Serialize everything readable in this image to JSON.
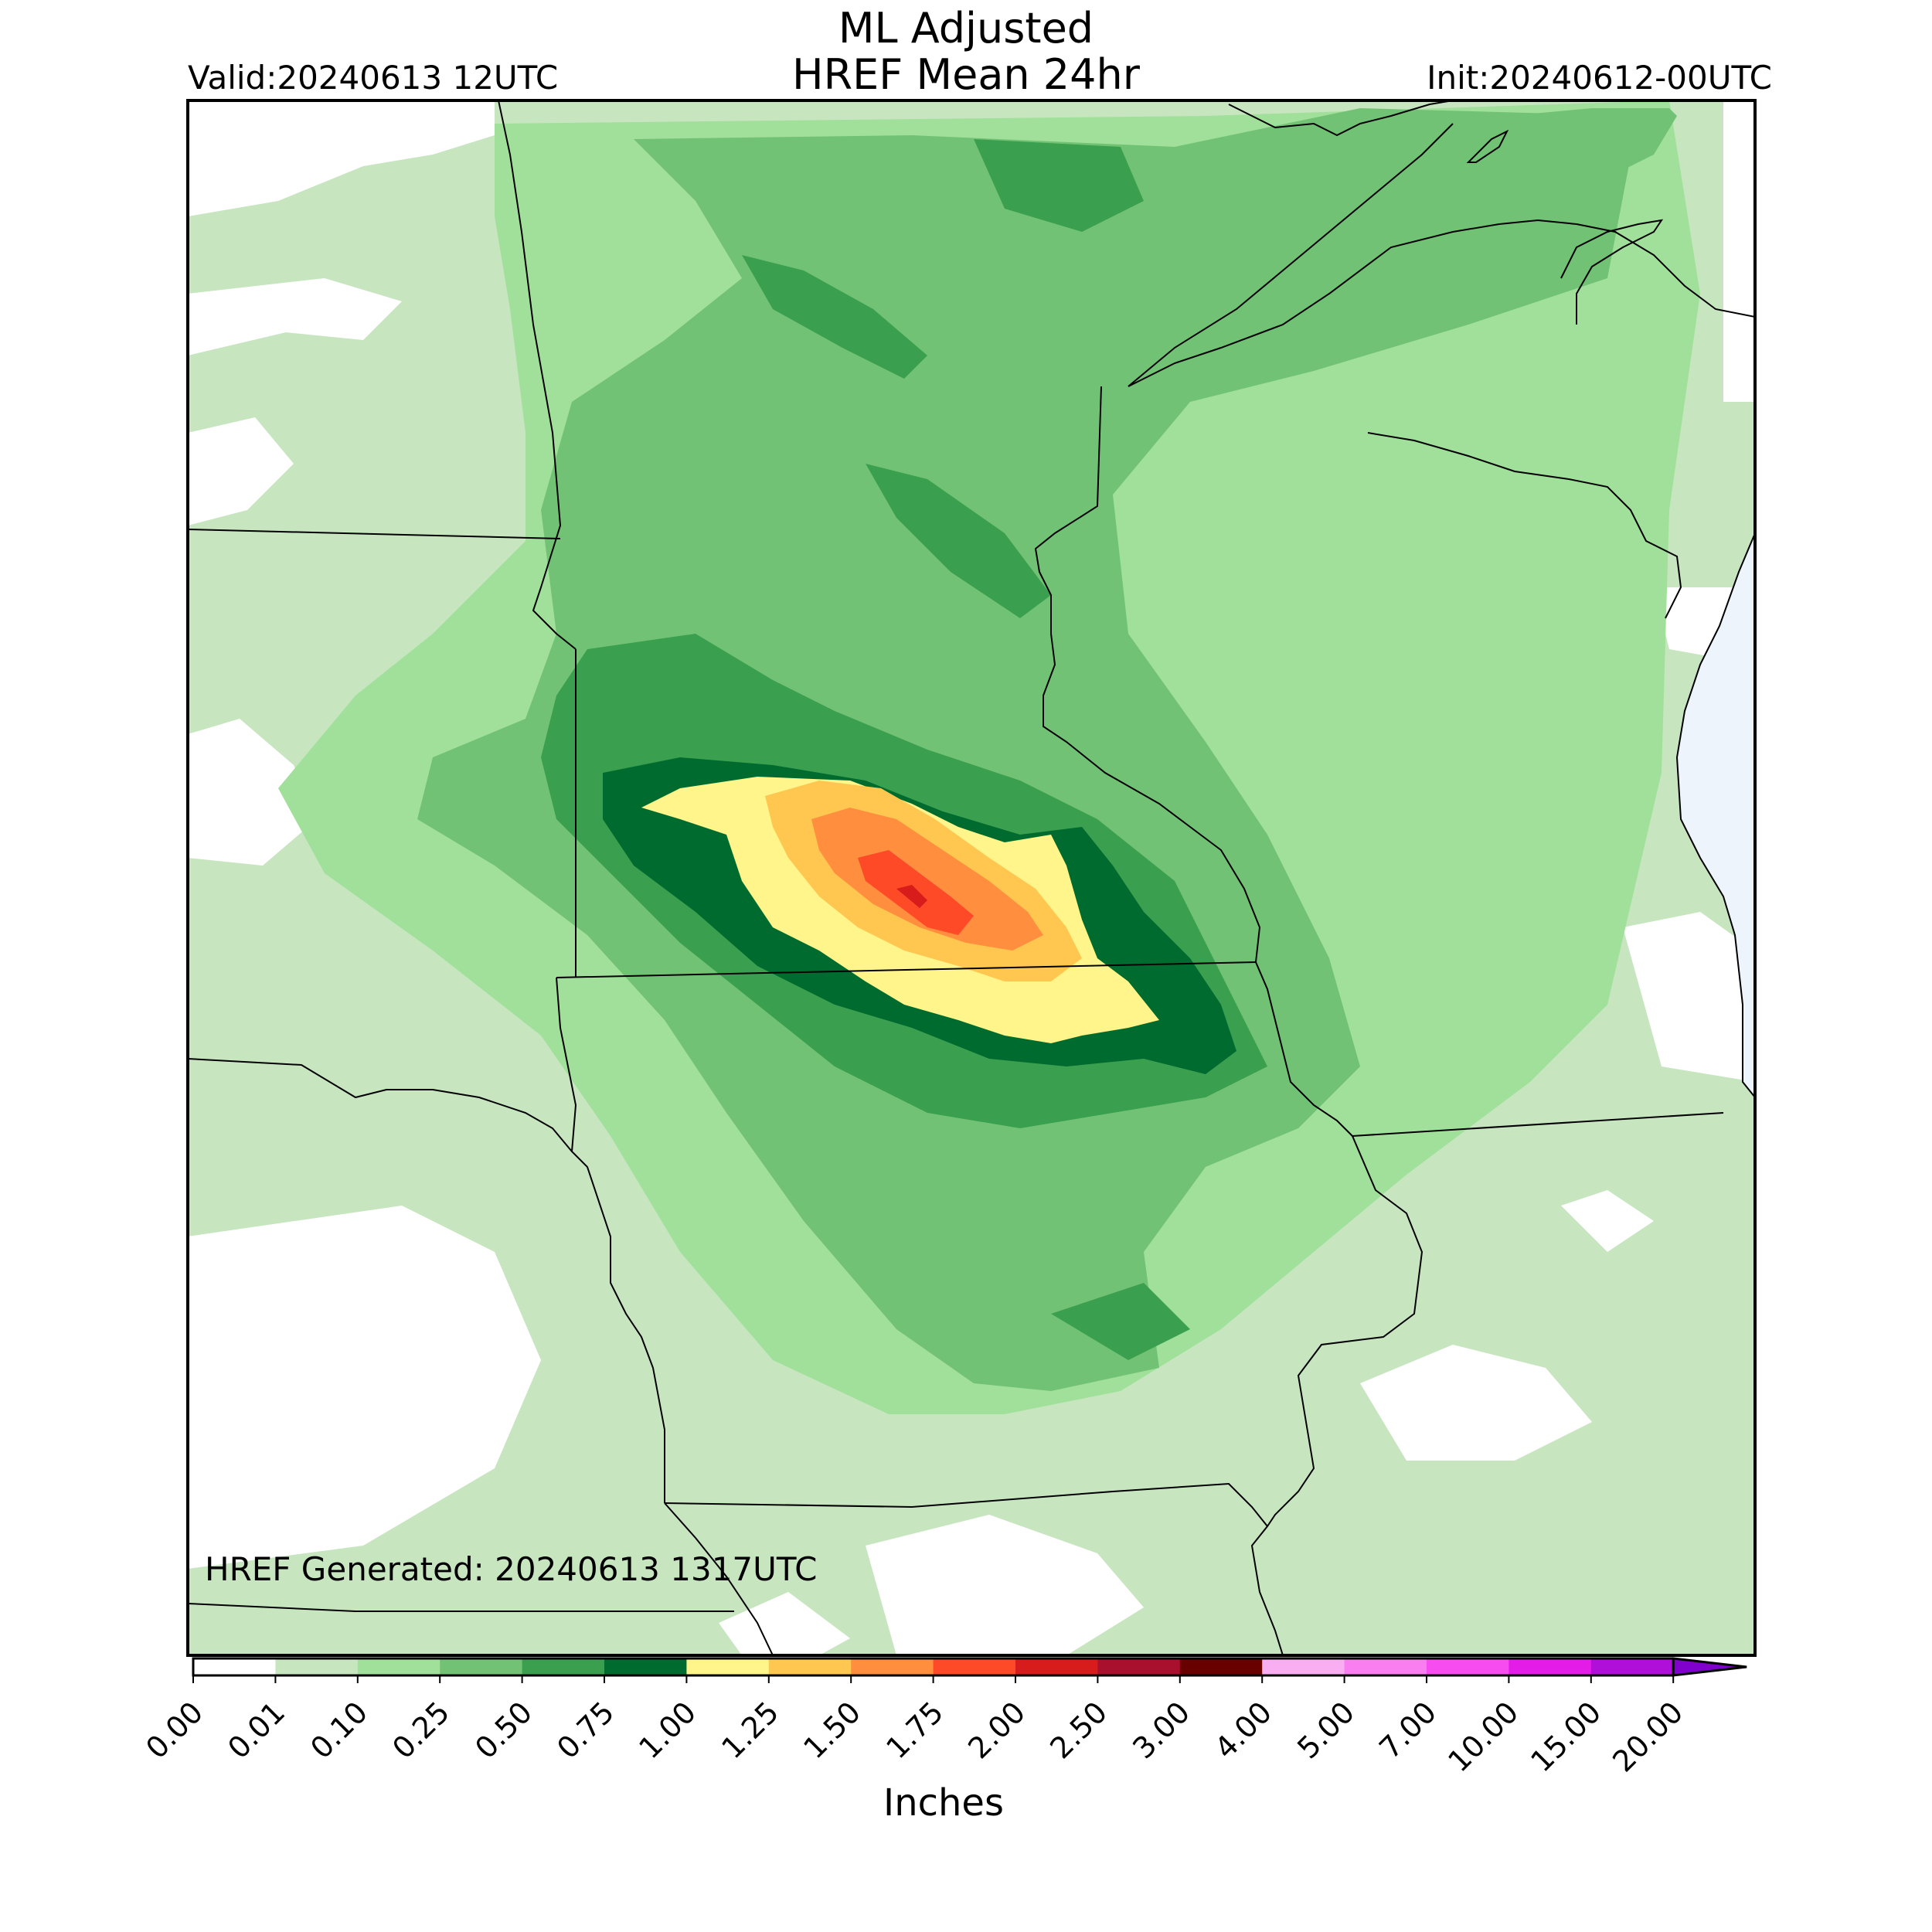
{
  "title_line1": "ML Adjusted",
  "title_line2": "HREF Mean 24hr",
  "valid": "Valid:20240613 12UTC",
  "init": "Init:20240612-00UTC",
  "generated": "HREF Generated: 20240613 1317UTC",
  "colorbar": {
    "label": "Inches",
    "ticks": [
      "0.00",
      "0.01",
      "0.10",
      "0.25",
      "0.50",
      "0.75",
      "1.00",
      "1.25",
      "1.50",
      "1.75",
      "2.00",
      "2.50",
      "3.00",
      "4.00",
      "5.00",
      "7.00",
      "10.00",
      "15.00",
      "20.00"
    ],
    "colors": [
      "#ffffff",
      "#c7e6c0",
      "#a1e09a",
      "#72c275",
      "#3aa04f",
      "#006b2e",
      "#fff58a",
      "#ffc750",
      "#ff8e3e",
      "#ff4a28",
      "#d81b1b",
      "#a8102e",
      "#680000",
      "#f9aef2",
      "#f97ef0",
      "#f74cf0",
      "#e41ce8",
      "#b00fd9",
      "#8000cc"
    ],
    "extend": "max"
  },
  "legend_colors": {
    "lake": "#eef4fb",
    "border": "#000000"
  }
}
